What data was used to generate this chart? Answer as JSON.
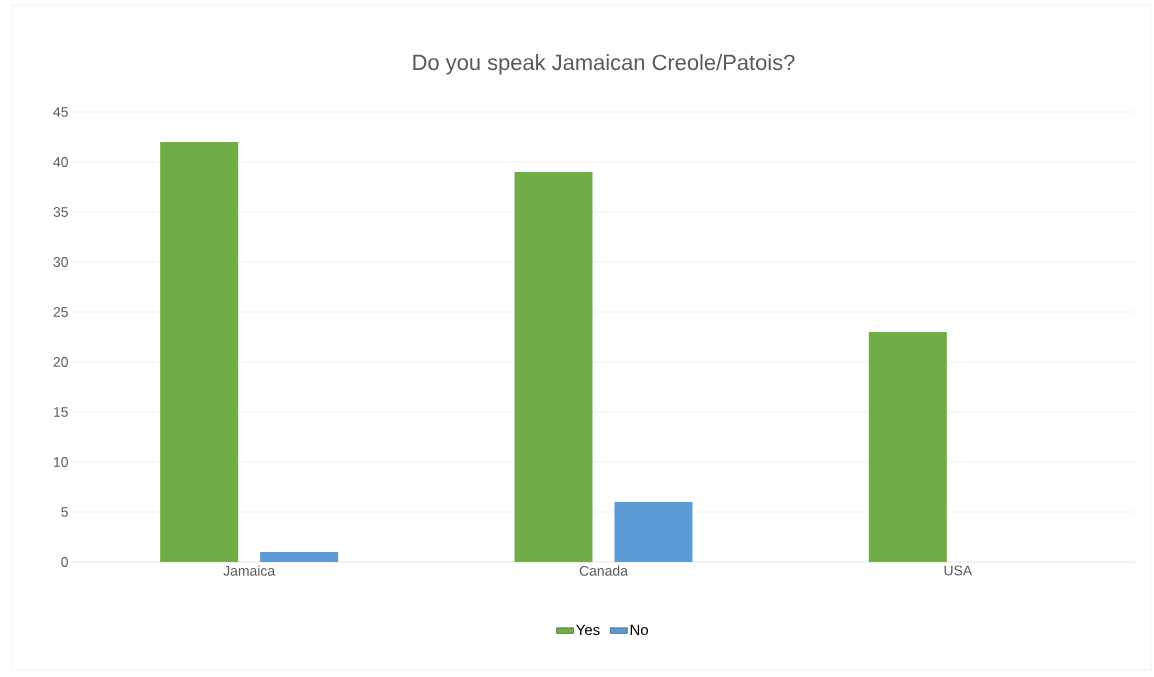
{
  "chart_data": {
    "type": "bar",
    "title": "Do you speak Jamaican Creole/Patois?",
    "categories": [
      "Jamaica",
      "Canada",
      "USA"
    ],
    "series": [
      {
        "name": "Yes",
        "color": "#70ad47",
        "values": [
          42,
          39,
          23
        ]
      },
      {
        "name": "No",
        "color": "#5b9bd5",
        "values": [
          1,
          6,
          0
        ]
      }
    ],
    "ylim": [
      0,
      45
    ],
    "yticks": [
      0,
      5,
      10,
      15,
      20,
      25,
      30,
      35,
      40,
      45
    ],
    "grid": "y",
    "legend": "bottom"
  }
}
